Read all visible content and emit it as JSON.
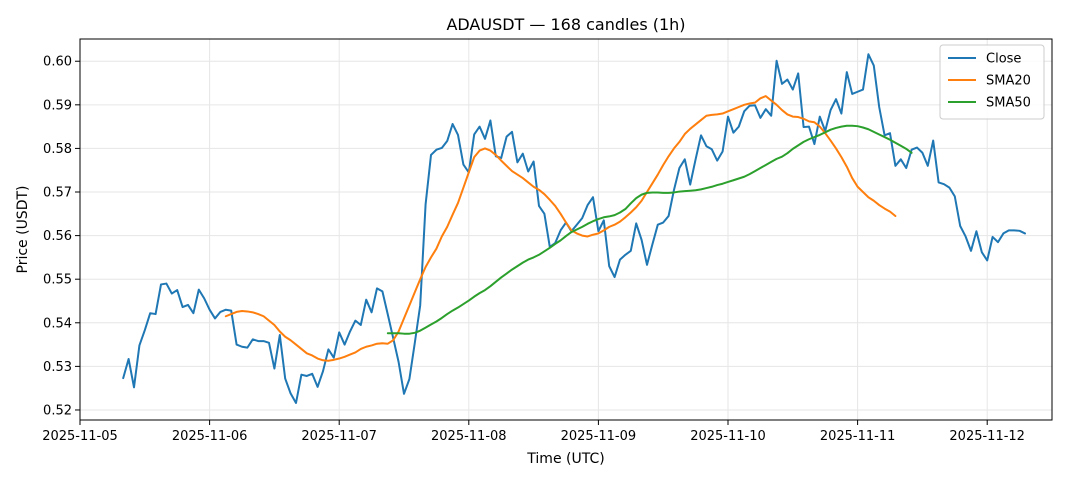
{
  "chart_data": {
    "type": "line",
    "title": "ADAUSDT — 168 candles (1h)",
    "xlabel": "Time (UTC)",
    "ylabel": "Price (USDT)",
    "x_ticks": [
      "2025-11-05",
      "2025-11-06",
      "2025-11-07",
      "2025-11-08",
      "2025-11-09",
      "2025-11-10",
      "2025-11-11",
      "2025-11-12"
    ],
    "x_range": [
      "2025-11-05 00:00",
      "2025-11-12 12:00"
    ],
    "y_ticks": [
      0.52,
      0.53,
      0.54,
      0.55,
      0.56,
      0.57,
      0.58,
      0.59,
      0.6
    ],
    "ylim": [
      0.5177,
      0.6051
    ],
    "grid": true,
    "legend_position": "top-right",
    "start_time": "2025-11-05 08:00",
    "interval_hours": 1,
    "series": [
      {
        "name": "Close",
        "color": "#1f77b4",
        "start_index": 0,
        "values": [
          0.5273,
          0.5317,
          0.5252,
          0.5348,
          0.5383,
          0.5422,
          0.542,
          0.5488,
          0.549,
          0.5467,
          0.5475,
          0.5436,
          0.5441,
          0.5422,
          0.5476,
          0.5456,
          0.543,
          0.541,
          0.5425,
          0.543,
          0.5428,
          0.535,
          0.5345,
          0.5343,
          0.5362,
          0.5358,
          0.5358,
          0.5354,
          0.5295,
          0.5372,
          0.5272,
          0.5238,
          0.5216,
          0.5281,
          0.5278,
          0.5283,
          0.5253,
          0.5289,
          0.5339,
          0.532,
          0.5378,
          0.535,
          0.538,
          0.5405,
          0.5395,
          0.5453,
          0.5424,
          0.5479,
          0.5472,
          0.5419,
          0.5365,
          0.531,
          0.5237,
          0.5271,
          0.5354,
          0.544,
          0.5672,
          0.5785,
          0.5797,
          0.5801,
          0.5817,
          0.5856,
          0.5831,
          0.5763,
          0.5745,
          0.5832,
          0.585,
          0.5822,
          0.5864,
          0.5782,
          0.5778,
          0.5827,
          0.5838,
          0.5768,
          0.5788,
          0.5747,
          0.577,
          0.5668,
          0.565,
          0.5574,
          0.5583,
          0.5612,
          0.563,
          0.561,
          0.5625,
          0.564,
          0.567,
          0.5688,
          0.561,
          0.5635,
          0.553,
          0.5505,
          0.5545,
          0.5556,
          0.5565,
          0.5628,
          0.559,
          0.5533,
          0.558,
          0.5625,
          0.563,
          0.5645,
          0.5705,
          0.5755,
          0.5775,
          0.5717,
          0.5775,
          0.583,
          0.5805,
          0.5798,
          0.5772,
          0.5793,
          0.5873,
          0.5836,
          0.585,
          0.5885,
          0.5898,
          0.5899,
          0.587,
          0.589,
          0.5875,
          0.6001,
          0.5948,
          0.5958,
          0.5935,
          0.5972,
          0.5849,
          0.585,
          0.581,
          0.5873,
          0.584,
          0.5888,
          0.5913,
          0.588,
          0.5975,
          0.5925,
          0.593,
          0.5935,
          0.6016,
          0.599,
          0.5895,
          0.583,
          0.5835,
          0.576,
          0.5775,
          0.5755,
          0.5797,
          0.5802,
          0.579,
          0.576,
          0.5818,
          0.5722,
          0.5718,
          0.571,
          0.569,
          0.5622,
          0.5598,
          0.5565,
          0.561,
          0.5562,
          0.5543,
          0.5597,
          0.5585,
          0.5605,
          0.5612,
          0.5612,
          0.5611,
          0.5605
        ]
      },
      {
        "name": "SMA20",
        "color": "#ff7f0e",
        "start_index": 19,
        "values": [
          0.5415,
          0.542,
          0.5425,
          0.5427,
          0.5426,
          0.5424,
          0.542,
          0.5415,
          0.5405,
          0.5395,
          0.538,
          0.5368,
          0.536,
          0.535,
          0.534,
          0.533,
          0.5325,
          0.5318,
          0.5314,
          0.5313,
          0.5315,
          0.5318,
          0.5322,
          0.5327,
          0.5332,
          0.534,
          0.5345,
          0.5348,
          0.5352,
          0.5353,
          0.5352,
          0.536,
          0.538,
          0.541,
          0.544,
          0.547,
          0.55,
          0.5528,
          0.555,
          0.557,
          0.5598,
          0.562,
          0.5648,
          0.5675,
          0.571,
          0.5745,
          0.578,
          0.5795,
          0.58,
          0.5795,
          0.5785,
          0.5772,
          0.576,
          0.5748,
          0.574,
          0.5732,
          0.5722,
          0.5712,
          0.5705,
          0.5695,
          0.5682,
          0.5668,
          0.565,
          0.563,
          0.5612,
          0.5605,
          0.56,
          0.5598,
          0.5602,
          0.5605,
          0.5612,
          0.562,
          0.5625,
          0.5632,
          0.5642,
          0.5653,
          0.5665,
          0.568,
          0.57,
          0.572,
          0.574,
          0.5762,
          0.5782,
          0.58,
          0.5815,
          0.5833,
          0.5845,
          0.5855,
          0.5865,
          0.5875,
          0.5877,
          0.5878,
          0.588,
          0.5885,
          0.589,
          0.5895,
          0.59,
          0.5903,
          0.5905,
          0.5915,
          0.592,
          0.591,
          0.59,
          0.5888,
          0.5878,
          0.5873,
          0.5872,
          0.5868,
          0.5862,
          0.586,
          0.585,
          0.5835,
          0.5818,
          0.58,
          0.578,
          0.5758,
          0.5732,
          0.5712,
          0.57,
          0.5688,
          0.568,
          0.567,
          0.5662,
          0.5655,
          0.5645
        ]
      },
      {
        "name": "SMA50",
        "color": "#2ca02c",
        "start_index": 49,
        "values": [
          0.5376,
          0.5376,
          0.5376,
          0.5375,
          0.5375,
          0.5377,
          0.5382,
          0.5389,
          0.5396,
          0.5403,
          0.5411,
          0.542,
          0.5428,
          0.5435,
          0.5443,
          0.5451,
          0.546,
          0.5468,
          0.5475,
          0.5484,
          0.5494,
          0.5504,
          0.5513,
          0.5522,
          0.553,
          0.5538,
          0.5545,
          0.555,
          0.5556,
          0.5564,
          0.5572,
          0.5581,
          0.5589,
          0.5599,
          0.5608,
          0.5614,
          0.562,
          0.5627,
          0.5633,
          0.5638,
          0.5642,
          0.5644,
          0.5647,
          0.5653,
          0.5661,
          0.5674,
          0.5686,
          0.5694,
          0.5698,
          0.5699,
          0.5699,
          0.5698,
          0.5698,
          0.5699,
          0.5701,
          0.5702,
          0.5703,
          0.5704,
          0.5706,
          0.5709,
          0.5712,
          0.5716,
          0.5719,
          0.5723,
          0.5727,
          0.5731,
          0.5735,
          0.5741,
          0.5748,
          0.5755,
          0.5762,
          0.5769,
          0.5776,
          0.5781,
          0.5789,
          0.5799,
          0.5807,
          0.5815,
          0.5821,
          0.5826,
          0.5831,
          0.5837,
          0.5843,
          0.5847,
          0.585,
          0.5852,
          0.5852,
          0.5851,
          0.5848,
          0.5844,
          0.5838,
          0.5832,
          0.5826,
          0.582,
          0.5813,
          0.5806,
          0.5799,
          0.579
        ]
      }
    ]
  }
}
